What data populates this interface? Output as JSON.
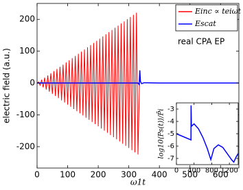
{
  "chart_data": [
    {
      "type": "line",
      "ylabel": "electric field (a.u.)",
      "xlabel": "ω1t",
      "annotation": "real CPA EP",
      "xlim": [
        0,
        660
      ],
      "ylim": [
        -267,
        250
      ],
      "xticks": [
        0,
        100,
        200,
        300,
        400,
        500,
        600
      ],
      "yticks": [
        -200,
        -100,
        0,
        100,
        200
      ],
      "legend": "upper right",
      "series": [
        {
          "name": "Einc ∝ teiωt",
          "color": "#ff0000",
          "x": [
            0,
            5,
            10,
            15,
            20,
            25,
            30,
            35,
            40,
            45,
            50,
            55,
            60,
            65,
            70,
            75,
            80,
            85,
            90,
            95,
            100,
            105,
            110,
            115,
            120,
            125,
            130,
            135,
            140,
            145,
            150,
            155,
            160,
            165,
            170,
            175,
            180,
            185,
            190,
            195,
            200,
            205,
            210,
            215,
            220,
            225,
            230,
            235,
            240,
            245,
            250,
            255,
            260,
            265,
            270,
            275,
            280,
            285,
            290,
            295,
            300,
            305,
            310,
            315,
            320,
            325,
            330,
            335
          ],
          "values": [
            0,
            3.4,
            -6.8,
            10.2,
            -13.6,
            17,
            -20.4,
            23.8,
            -27.2,
            30.6,
            -34,
            37.4,
            -40.8,
            44.2,
            -47.6,
            51,
            -54.4,
            57.8,
            -61.2,
            64.6,
            -68,
            71.4,
            -74.8,
            78.2,
            -81.6,
            85,
            -88.4,
            91.8,
            -95.2,
            98.6,
            -102,
            105.4,
            -108.8,
            112.2,
            -115.6,
            119,
            -122.4,
            125.8,
            -129.2,
            132.6,
            -136,
            139.4,
            -142.8,
            146.2,
            -149.6,
            153,
            -156.4,
            159.8,
            -163.2,
            166.6,
            -170,
            173.4,
            -176.8,
            180.2,
            -183.6,
            187,
            -190.4,
            193.8,
            -197.2,
            200.6,
            -204,
            207.4,
            -210.8,
            214.2,
            -217.6,
            221,
            -224.4,
            0
          ]
        },
        {
          "name": "Escat",
          "color": "#0000ff",
          "x": [
            0,
            330,
            334,
            336,
            338,
            342,
            350,
            400,
            660
          ],
          "values": [
            0,
            0,
            -5,
            40,
            5,
            -2,
            1,
            0,
            0
          ]
        }
      ]
    },
    {
      "type": "line",
      "ylabel": "log10⟨Ps(t)⟩/P̄i",
      "xlim": [
        0,
        1400
      ],
      "ylim": [
        -7.5,
        -2.5
      ],
      "xticks": [
        0,
        400,
        800,
        1200
      ],
      "yticks": [
        -3,
        -4,
        -5,
        -6,
        -7
      ],
      "series": [
        {
          "color": "#0000ff",
          "x": [
            0,
            330,
            332,
            340,
            400,
            500,
            600,
            700,
            780,
            850,
            950,
            1050,
            1150,
            1250,
            1300,
            1350,
            1400
          ],
          "values": [
            -5,
            -5.5,
            -2.7,
            -4.4,
            -4.2,
            -4.6,
            -5.3,
            -6.2,
            -7.1,
            -6.2,
            -5.9,
            -6.1,
            -6.6,
            -7.1,
            -7.3,
            -6.9,
            -6.6
          ]
        }
      ]
    }
  ]
}
